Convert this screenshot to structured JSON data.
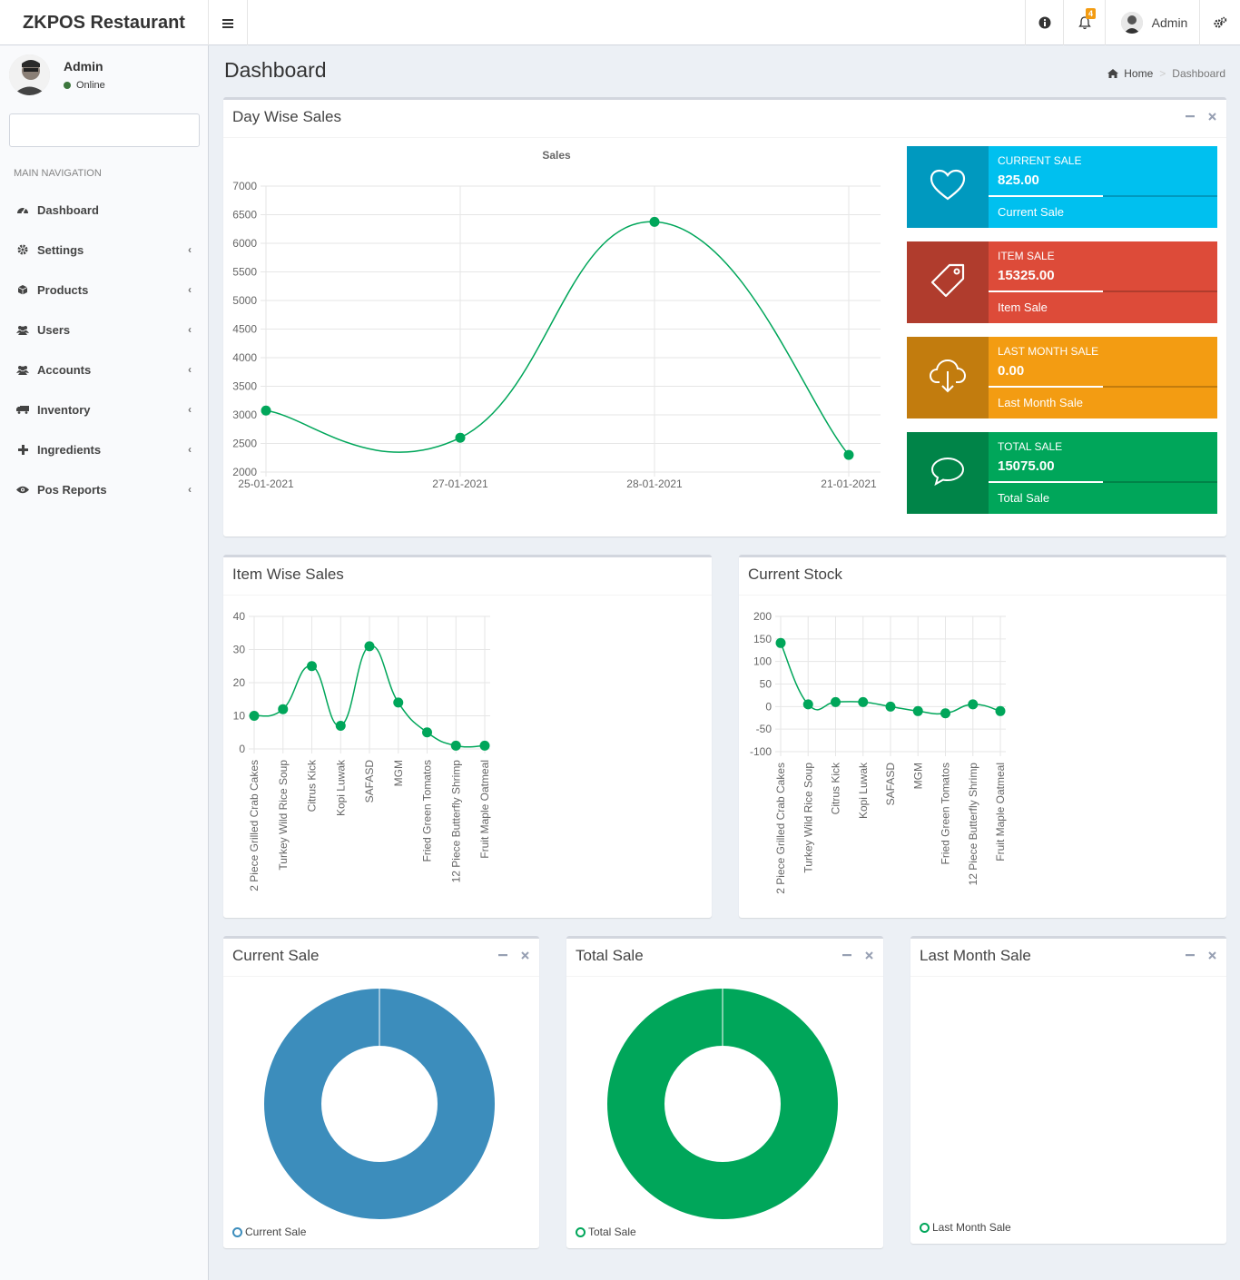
{
  "app": {
    "brand": "ZKPOS Restaurant",
    "notification_count": "4",
    "user_name": "Admin"
  },
  "sidebar": {
    "user_name": "Admin",
    "status": "Online",
    "nav_header": "MAIN NAVIGATION",
    "items": [
      {
        "label": "Dashboard",
        "icon": "dashboard-icon",
        "has_children": false
      },
      {
        "label": "Settings",
        "icon": "gear-icon",
        "has_children": true
      },
      {
        "label": "Products",
        "icon": "cube-icon",
        "has_children": true
      },
      {
        "label": "Users",
        "icon": "users-icon",
        "has_children": true
      },
      {
        "label": "Accounts",
        "icon": "users-icon",
        "has_children": true
      },
      {
        "label": "Inventory",
        "icon": "truck-icon",
        "has_children": true
      },
      {
        "label": "Ingredients",
        "icon": "plus-icon",
        "has_children": true
      },
      {
        "label": "Pos Reports",
        "icon": "eye-icon",
        "has_children": true
      }
    ]
  },
  "page": {
    "title": "Dashboard",
    "breadcrumb": {
      "home": "Home",
      "current": "Dashboard"
    }
  },
  "boxes": {
    "day_wise": "Day Wise Sales",
    "item_wise": "Item Wise Sales",
    "stock": "Current Stock",
    "current_sale": "Current Sale",
    "total_sale": "Total Sale",
    "last_month_sale": "Last Month Sale"
  },
  "info_boxes": [
    {
      "title": "CURRENT SALE",
      "value": "825.00",
      "desc": "Current Sale",
      "color": "#00c0ef",
      "icon": "heart-icon"
    },
    {
      "title": "ITEM SALE",
      "value": "15325.00",
      "desc": "Item Sale",
      "color": "#dd4b39",
      "icon": "tag-icon"
    },
    {
      "title": "LAST MONTH SALE",
      "value": "0.00",
      "desc": "Last Month Sale",
      "color": "#f39c12",
      "icon": "cloud-download-icon"
    },
    {
      "title": "TOTAL SALE",
      "value": "15075.00",
      "desc": "Total Sale",
      "color": "#00a65a",
      "icon": "comment-icon"
    }
  ],
  "legends": {
    "current_sale": "Current Sale",
    "total_sale": "Total Sale",
    "last_month_sale": "Last Month Sale"
  },
  "colors": {
    "line": "#00a65a",
    "current_sale_pie": "#3c8dbc",
    "total_sale_pie": "#00a65a"
  },
  "chart_data": [
    {
      "type": "line",
      "title": "Sales",
      "categories": [
        "25-01-2021",
        "27-01-2021",
        "28-01-2021",
        "21-01-2021"
      ],
      "values": [
        3075,
        2600,
        6375,
        2300
      ],
      "ylim": [
        2000,
        7000
      ],
      "yticks": [
        2000,
        2500,
        3000,
        3500,
        4000,
        4500,
        5000,
        5500,
        6000,
        6500,
        7000
      ],
      "grid": true
    },
    {
      "type": "line",
      "categories": [
        "2 Piece Grilled Crab Cakes",
        "Turkey Wild Rice Soup",
        "Citrus Kick",
        "Kopi Luwak",
        "SAFASD",
        "MGM",
        "Fried Green Tomatos",
        "12 Piece Butterfly Shrimp",
        "Fruit Maple Oatmeal"
      ],
      "values": [
        10,
        12,
        25,
        7,
        31,
        14,
        5,
        1,
        1
      ],
      "ylim": [
        0,
        40
      ],
      "yticks": [
        0,
        10,
        20,
        30,
        40
      ],
      "grid": true
    },
    {
      "type": "line",
      "categories": [
        "2 Piece Grilled Crab Cakes",
        "Turkey Wild Rice Soup",
        "Citrus Kick",
        "Kopi Luwak",
        "SAFASD",
        "MGM",
        "Fried Green Tomatos",
        "12 Piece Butterfly Shrimp",
        "Fruit Maple Oatmeal"
      ],
      "values": [
        141,
        5,
        10,
        10,
        0,
        -10,
        -15,
        5,
        -10
      ],
      "ylim": [
        -100,
        200
      ],
      "yticks": [
        -100,
        -50,
        0,
        50,
        100,
        150,
        200
      ],
      "grid": true
    },
    {
      "type": "pie",
      "categories": [
        "Current Sale"
      ],
      "values": [
        825
      ],
      "legend": "bottom-left"
    },
    {
      "type": "pie",
      "categories": [
        "Total Sale"
      ],
      "values": [
        15075
      ],
      "legend": "bottom-left"
    },
    {
      "type": "pie",
      "categories": [
        "Last Month Sale"
      ],
      "values": [
        0
      ],
      "legend": "bottom-left"
    }
  ]
}
